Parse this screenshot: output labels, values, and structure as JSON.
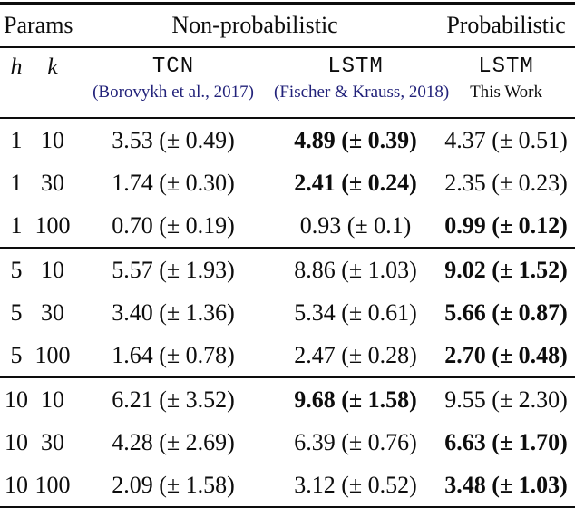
{
  "table": {
    "header": {
      "params": "Params",
      "nonprobabilistic": "Non-probabilistic",
      "probabilistic": "Probabilistic"
    },
    "subheader": {
      "h": "h",
      "k": "k",
      "tcn_model": "TCN",
      "tcn_citation": "(Borovykh et al., 2017)",
      "lstm_model": "LSTM",
      "lstm_citation": "(Fischer & Krauss, 2018)",
      "prob_model": "LSTM",
      "prob_citation": "This Work"
    },
    "blocks": [
      {
        "rows": [
          {
            "h": "1",
            "k": "10",
            "tcn": "3.53 (± 0.49)",
            "lstm": "4.89 (± 0.39)",
            "prob": "4.37 (± 0.51)",
            "bold_col": "lstm"
          },
          {
            "h": "1",
            "k": "30",
            "tcn": "1.74 (± 0.30)",
            "lstm": "2.41 (± 0.24)",
            "prob": "2.35 (± 0.23)",
            "bold_col": "lstm"
          },
          {
            "h": "1",
            "k": "100",
            "tcn": "0.70 (± 0.19)",
            "lstm": "0.93 (± 0.1)",
            "prob": "0.99 (± 0.12)",
            "bold_col": "prob"
          }
        ]
      },
      {
        "rows": [
          {
            "h": "5",
            "k": "10",
            "tcn": "5.57 (± 1.93)",
            "lstm": "8.86 (± 1.03)",
            "prob": "9.02 (± 1.52)",
            "bold_col": "prob"
          },
          {
            "h": "5",
            "k": "30",
            "tcn": "3.40 (± 1.36)",
            "lstm": "5.34 (± 0.61)",
            "prob": "5.66 (± 0.87)",
            "bold_col": "prob"
          },
          {
            "h": "5",
            "k": "100",
            "tcn": "1.64 (± 0.78)",
            "lstm": "2.47 (± 0.28)",
            "prob": "2.70 (± 0.48)",
            "bold_col": "prob"
          }
        ]
      },
      {
        "rows": [
          {
            "h": "10",
            "k": "10",
            "tcn": "6.21 (± 3.52)",
            "lstm": "9.68 (± 1.58)",
            "prob": "9.55 (± 2.30)",
            "bold_col": "lstm"
          },
          {
            "h": "10",
            "k": "30",
            "tcn": "4.28 (± 2.69)",
            "lstm": "6.39 (± 0.76)",
            "prob": "6.63 (± 1.70)",
            "bold_col": "prob"
          },
          {
            "h": "10",
            "k": "100",
            "tcn": "2.09 (± 1.58)",
            "lstm": "3.12 (± 0.52)",
            "prob": "3.48 (± 1.03)",
            "bold_col": "prob"
          }
        ]
      }
    ]
  },
  "colors": {
    "citation_blue": "#22227a",
    "text": "#0d0d0d",
    "background": "#ffffff",
    "rule": "#0d0d0d"
  }
}
